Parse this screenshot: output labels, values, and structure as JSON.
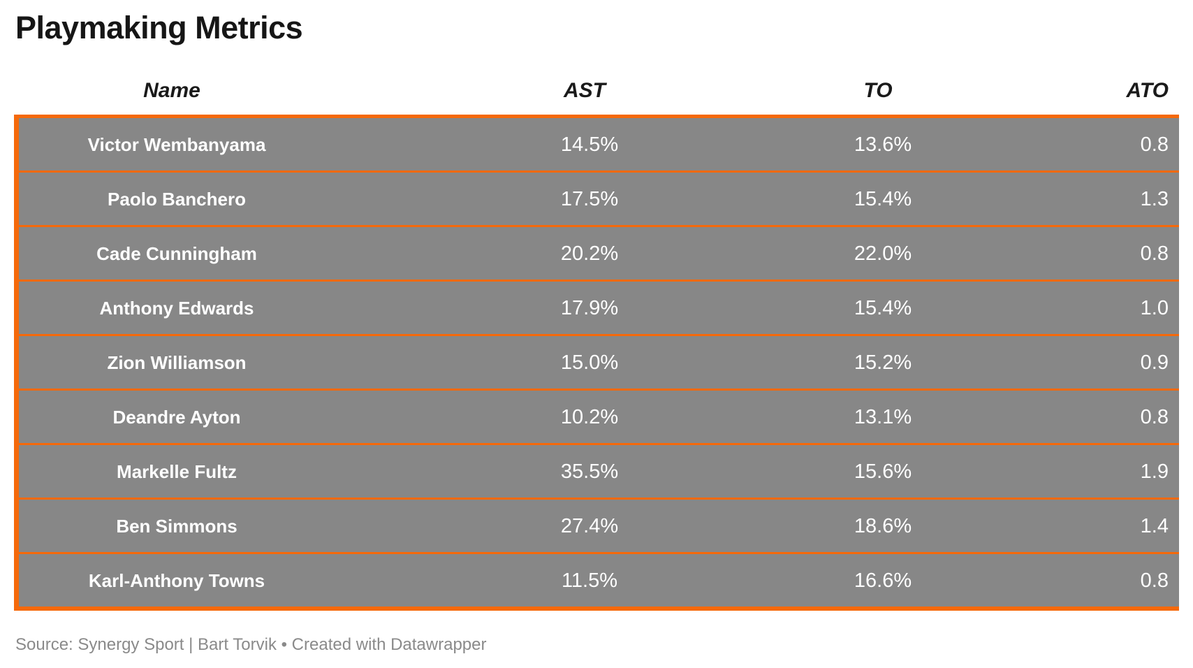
{
  "title": "Playmaking Metrics",
  "footer": {
    "text": "Source: Synergy Sport | Bart Torvik • Created with Datawrapper"
  },
  "colors": {
    "accent_orange": "#f5690a",
    "row_gray": "#878787",
    "cell_text": "#ffffff",
    "title_color": "#161616",
    "footer_color": "#8a8a8a"
  },
  "chart_data": {
    "type": "table",
    "title": "Playmaking Metrics",
    "columns": [
      {
        "key": "name",
        "label": "Name",
        "align": "center"
      },
      {
        "key": "ast",
        "label": "AST",
        "align": "center"
      },
      {
        "key": "to",
        "label": "TO",
        "align": "center"
      },
      {
        "key": "ato",
        "label": "ATO",
        "align": "right"
      }
    ],
    "rows": [
      {
        "name": "Victor Wembanyama",
        "ast": "14.5%",
        "to": "13.6%",
        "ato": "0.8"
      },
      {
        "name": "Paolo Banchero",
        "ast": "17.5%",
        "to": "15.4%",
        "ato": "1.3"
      },
      {
        "name": "Cade Cunningham",
        "ast": "20.2%",
        "to": "22.0%",
        "ato": "0.8"
      },
      {
        "name": "Anthony Edwards",
        "ast": "17.9%",
        "to": "15.4%",
        "ato": "1.0"
      },
      {
        "name": "Zion Williamson",
        "ast": "15.0%",
        "to": "15.2%",
        "ato": "0.9"
      },
      {
        "name": "Deandre Ayton",
        "ast": "10.2%",
        "to": "13.1%",
        "ato": "0.8"
      },
      {
        "name": "Markelle Fultz",
        "ast": "35.5%",
        "to": "15.6%",
        "ato": "1.9"
      },
      {
        "name": "Ben Simmons",
        "ast": "27.4%",
        "to": "18.6%",
        "ato": "1.4"
      },
      {
        "name": "Karl-Anthony Towns",
        "ast": "11.5%",
        "to": "16.6%",
        "ato": "0.8"
      }
    ],
    "legend_position": "none",
    "grid": "row-separators-orange",
    "source": "Synergy Sport | Bart Torvik",
    "tool": "Datawrapper"
  }
}
